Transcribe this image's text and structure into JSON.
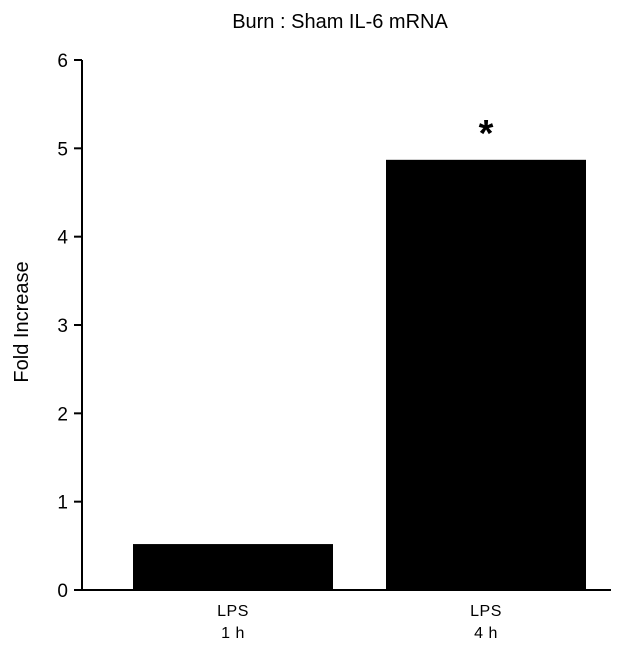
{
  "chart_data": {
    "type": "bar",
    "title": "Burn : Sham IL-6 mRNA",
    "xlabel": "",
    "ylabel": "Fold Increase",
    "categories": [
      [
        "LPS",
        "1 h"
      ],
      [
        "LPS",
        "4 h"
      ]
    ],
    "values": [
      0.52,
      4.87
    ],
    "ylim": [
      0,
      6
    ],
    "yticks": [
      0,
      1,
      2,
      3,
      4,
      5,
      6
    ],
    "annotations": [
      {
        "category_index": 1,
        "text": "*"
      }
    ],
    "bar_color": "#000000",
    "grid": false,
    "legend": "none"
  }
}
